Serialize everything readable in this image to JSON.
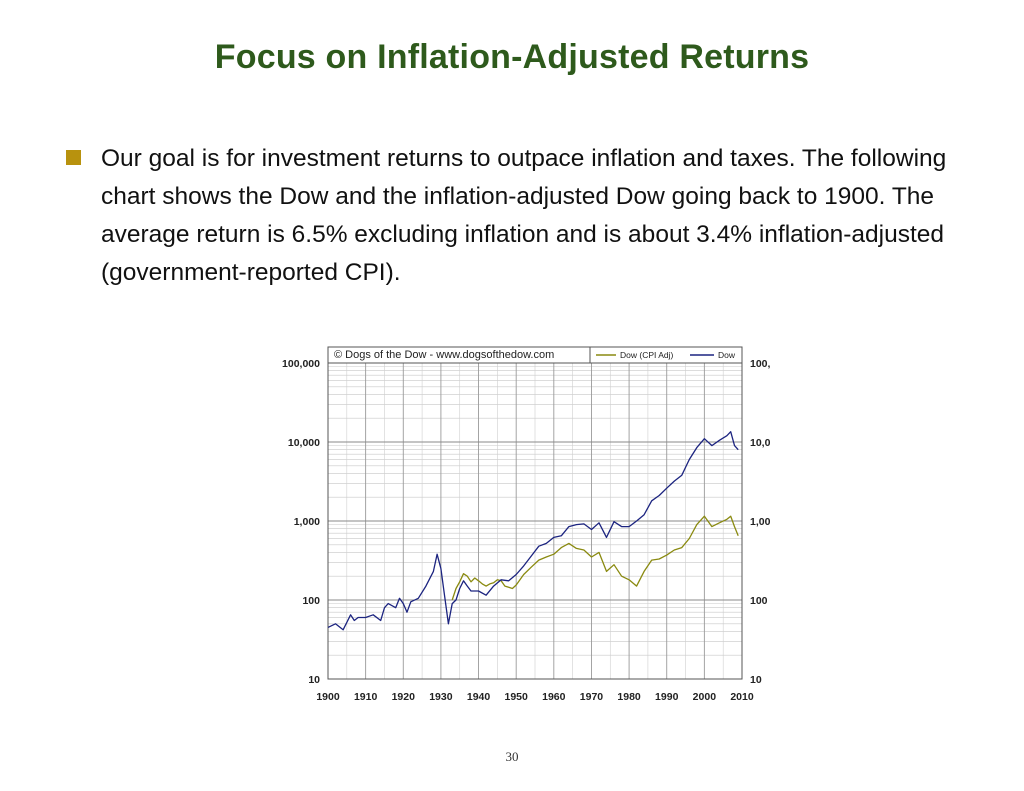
{
  "slide": {
    "title": "Focus on Inflation-Adjusted Returns",
    "bullet_text": "Our goal is for investment returns to outpace inflation and taxes. The following chart shows the Dow and the inflation-adjusted Dow going back to 1900. The average return is 6.5% excluding inflation and is about 3.4% inflation-adjusted (government-reported CPI).",
    "page_number": "30"
  },
  "colors": {
    "title": "#2e5a1c",
    "bullet": "#b8920e",
    "dow": "#1c2480",
    "dow_cpi_adj": "#8a8a10"
  },
  "chart_data": {
    "type": "line",
    "credit": "© Dogs of the Dow - www.dogsofthedow.com",
    "xlim": [
      1900,
      2010
    ],
    "ylim": [
      10,
      100000
    ],
    "y_scale": "log",
    "x_ticks": [
      1900,
      1910,
      1920,
      1930,
      1940,
      1950,
      1960,
      1970,
      1980,
      1990,
      2000,
      2010
    ],
    "y_ticks": [
      {
        "value": 10,
        "label": "10"
      },
      {
        "value": 100,
        "label": "100"
      },
      {
        "value": 1000,
        "label": "1,000"
      },
      {
        "value": 10000,
        "label": "10,000"
      },
      {
        "value": 100000,
        "label": "100,000"
      }
    ],
    "grid": true,
    "legend_position": "top-right",
    "series": [
      {
        "name": "Dow (CPI Adj)",
        "color": "#8a8a10",
        "x": [
          1933,
          1934,
          1935,
          1936,
          1937,
          1938,
          1939,
          1940,
          1941,
          1942,
          1943,
          1944,
          1945,
          1946,
          1947,
          1948,
          1949,
          1950,
          1952,
          1954,
          1956,
          1958,
          1960,
          1962,
          1964,
          1966,
          1968,
          1970,
          1972,
          1974,
          1976,
          1978,
          1980,
          1982,
          1984,
          1986,
          1988,
          1990,
          1992,
          1994,
          1996,
          1998,
          2000,
          2002,
          2004,
          2006,
          2007,
          2008,
          2009
        ],
        "y": [
          100,
          140,
          170,
          215,
          200,
          170,
          190,
          175,
          160,
          150,
          160,
          165,
          180,
          175,
          150,
          145,
          140,
          155,
          210,
          260,
          320,
          350,
          380,
          460,
          520,
          450,
          430,
          350,
          400,
          230,
          280,
          200,
          180,
          150,
          230,
          320,
          330,
          370,
          430,
          460,
          600,
          900,
          1150,
          850,
          950,
          1050,
          1150,
          850,
          650
        ]
      },
      {
        "name": "Dow",
        "color": "#1c2480",
        "x": [
          1900,
          1902,
          1904,
          1906,
          1907,
          1908,
          1910,
          1912,
          1914,
          1915,
          1916,
          1918,
          1919,
          1920,
          1921,
          1922,
          1924,
          1926,
          1928,
          1929,
          1930,
          1931,
          1932,
          1933,
          1934,
          1935,
          1936,
          1937,
          1938,
          1940,
          1942,
          1944,
          1946,
          1948,
          1950,
          1952,
          1954,
          1956,
          1958,
          1960,
          1962,
          1964,
          1966,
          1968,
          1970,
          1972,
          1974,
          1976,
          1978,
          1980,
          1982,
          1984,
          1986,
          1988,
          1990,
          1992,
          1994,
          1996,
          1998,
          2000,
          2002,
          2004,
          2006,
          2007,
          2008,
          2009
        ],
        "y": [
          45,
          50,
          42,
          65,
          55,
          60,
          60,
          65,
          55,
          80,
          90,
          80,
          105,
          90,
          70,
          95,
          105,
          150,
          230,
          380,
          250,
          110,
          50,
          90,
          100,
          140,
          175,
          150,
          130,
          130,
          115,
          150,
          180,
          175,
          210,
          270,
          360,
          480,
          520,
          620,
          650,
          850,
          900,
          920,
          780,
          950,
          620,
          980,
          850,
          850,
          1000,
          1200,
          1800,
          2100,
          2600,
          3200,
          3800,
          6000,
          8500,
          11000,
          9000,
          10500,
          12000,
          13500,
          9000,
          8000
        ]
      }
    ]
  }
}
